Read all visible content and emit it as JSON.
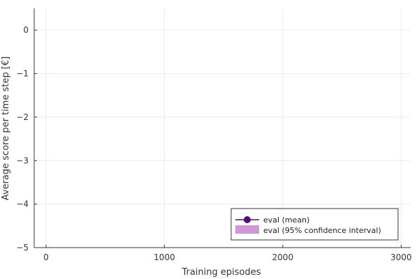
{
  "chart_data": {
    "type": "line",
    "title": "",
    "xlabel": "Training episodes",
    "ylabel": "Average score per time step [€]",
    "xlim": [
      -100,
      3080
    ],
    "ylim": [
      -5,
      0.5
    ],
    "xticks": [
      0,
      1000,
      2000,
      3000
    ],
    "yticks": [
      0,
      -1,
      -2,
      -3,
      -4,
      -5
    ],
    "xtick_labels": [
      "0",
      "1000",
      "2000",
      "3000"
    ],
    "ytick_labels": [
      "0",
      "−1",
      "−2",
      "−3",
      "−4",
      "−5"
    ],
    "grid": true,
    "legend_position": "bottom-right",
    "series": [
      {
        "name": "eval (mean)",
        "kind": "line-marker",
        "color": "#4b0e7a",
        "x": [],
        "y": []
      },
      {
        "name": "eval (95% confidence interval)",
        "kind": "band",
        "color": "#cf97d6",
        "x": [],
        "lower": [],
        "upper": []
      }
    ]
  }
}
